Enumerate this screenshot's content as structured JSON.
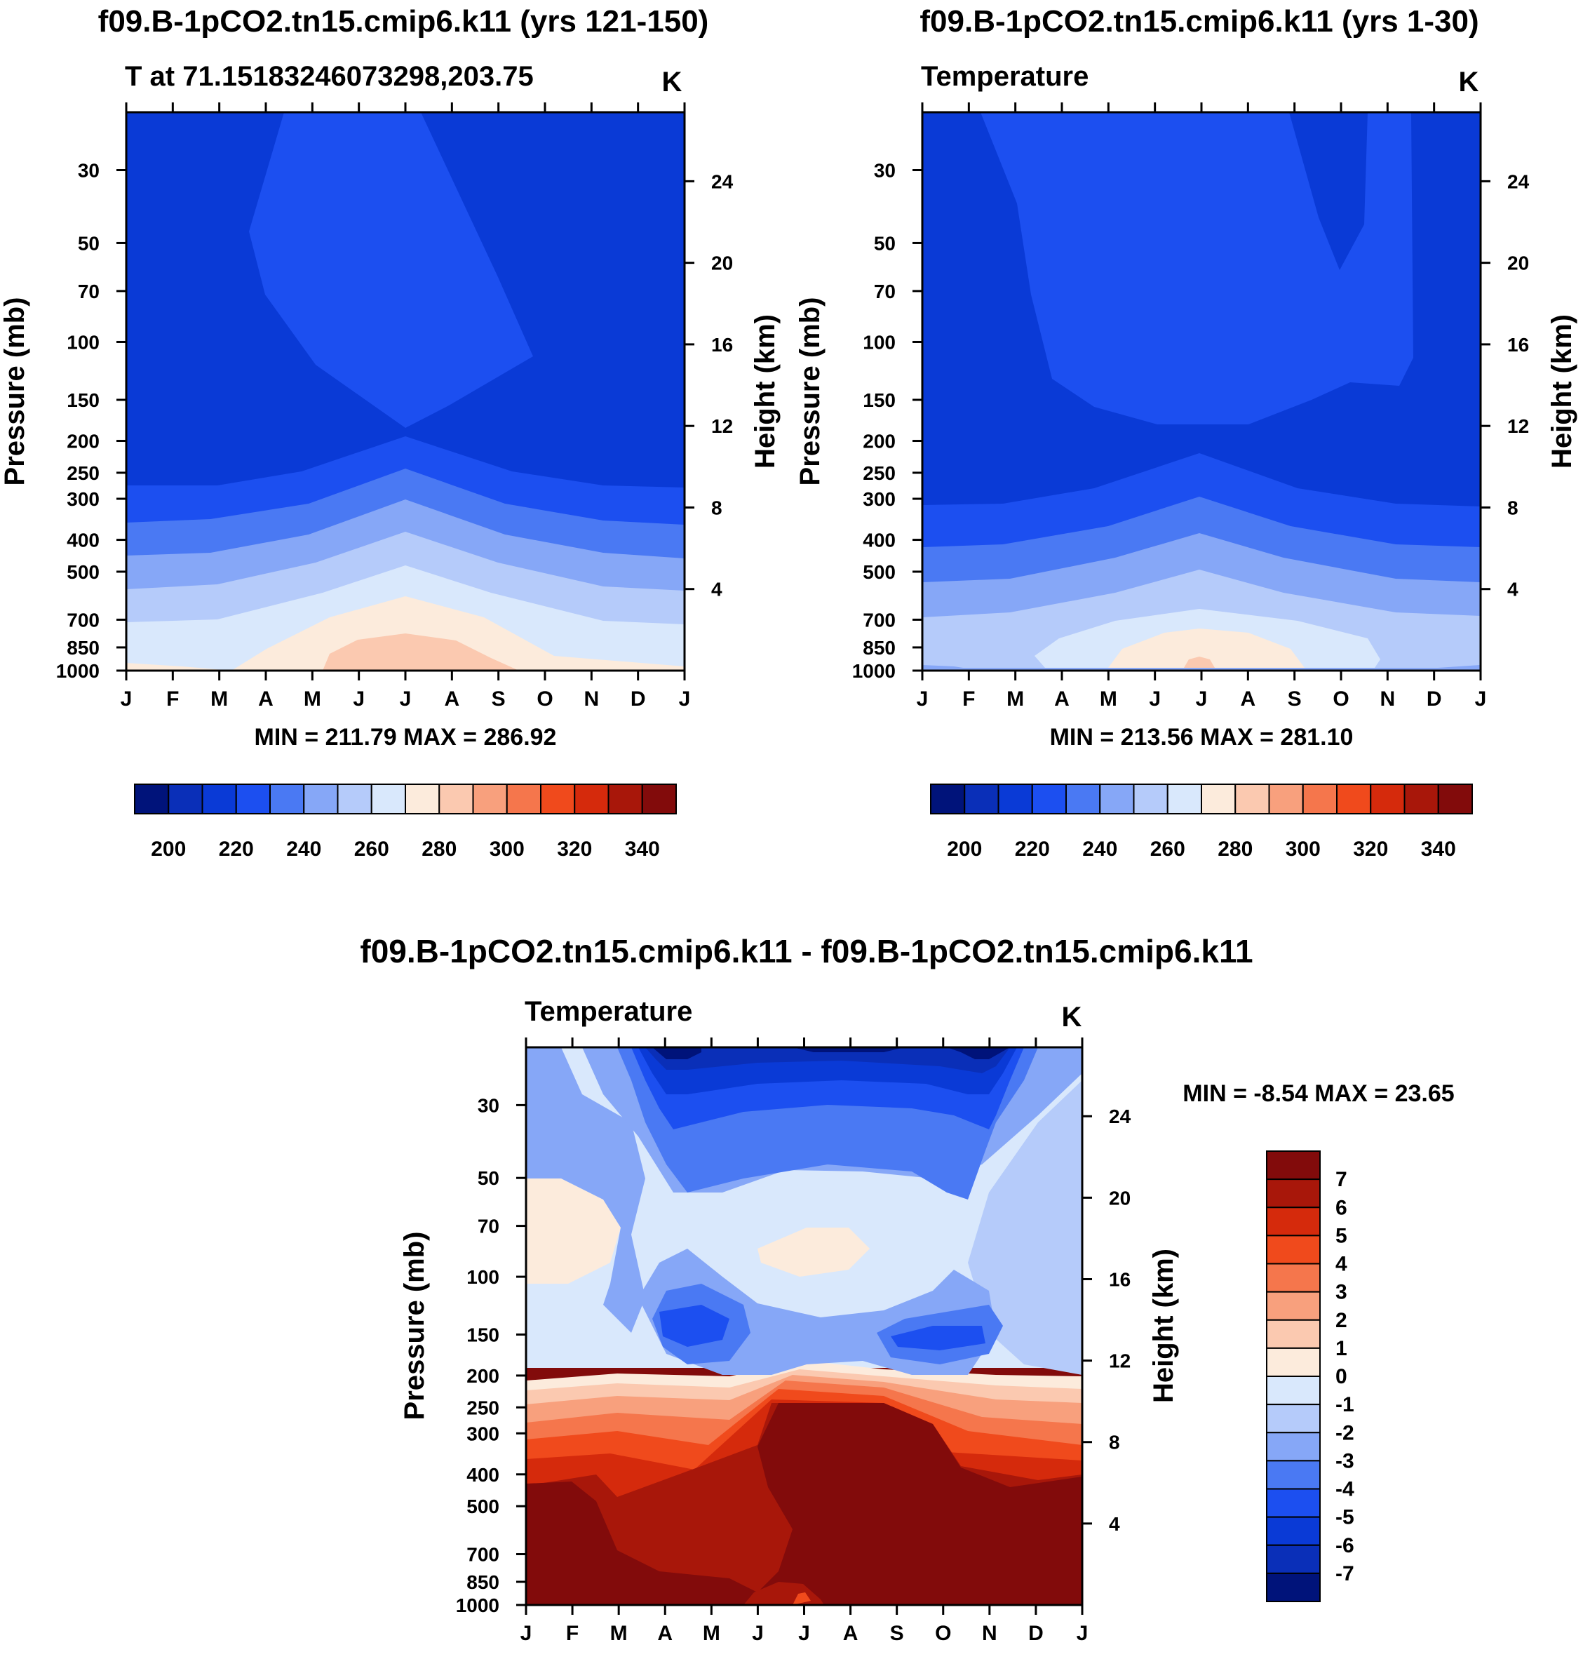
{
  "chart_data": [
    {
      "type": "heatmap",
      "title": "f09.B-1pCO2.tn15.cmip6.k11 (yrs 121-150)",
      "subtitle_left": "T at 71.15183246073298,203.75",
      "units": "K",
      "ylabel": "Pressure (mb)",
      "ylabel_right": "Height (km)",
      "x_ticks": [
        "J",
        "F",
        "M",
        "A",
        "M",
        "J",
        "J",
        "A",
        "S",
        "O",
        "N",
        "D",
        "J"
      ],
      "pressure_ticks": [
        30,
        50,
        70,
        100,
        150,
        200,
        250,
        300,
        400,
        500,
        700,
        850,
        1000
      ],
      "height_ticks": [
        24,
        20,
        16,
        12,
        8,
        4
      ],
      "stats": "MIN = 211.79 MAX = 286.92",
      "colorbar_labels": [
        "200",
        "220",
        "240",
        "260",
        "280",
        "300",
        "320",
        "340"
      ],
      "colorbar_colors": [
        "#00137a",
        "#0a2fb8",
        "#0a3ad6",
        "#1c4ff0",
        "#4a79f3",
        "#86a7f7",
        "#b5cbfa",
        "#d9e8fc",
        "#fcebdc",
        "#fbc9b0",
        "#f8a07d",
        "#f5764c",
        "#f04a1c",
        "#d52a0c",
        "#a8170a",
        "#820b0b"
      ],
      "contour_bands": [
        {
          "level": "210-220",
          "color": "#0a3ad6"
        },
        {
          "level": "220-230",
          "color": "#1c4ff0"
        },
        {
          "level": "230-240",
          "color": "#4a79f3"
        },
        {
          "level": "240-250",
          "color": "#86a7f7"
        },
        {
          "level": "250-260",
          "color": "#b5cbfa"
        },
        {
          "level": "260-270",
          "color": "#d9e8fc"
        },
        {
          "level": "270-280",
          "color": "#fcebdc"
        },
        {
          "level": "280-290",
          "color": "#fbc9b0"
        }
      ]
    },
    {
      "type": "heatmap",
      "title": "f09.B-1pCO2.tn15.cmip6.k11 (yrs 1-30)",
      "subtitle_left": "Temperature",
      "units": "K",
      "ylabel": "Pressure (mb)",
      "ylabel_right": "Height (km)",
      "x_ticks": [
        "J",
        "F",
        "M",
        "A",
        "M",
        "J",
        "J",
        "A",
        "S",
        "O",
        "N",
        "D",
        "J"
      ],
      "pressure_ticks": [
        30,
        50,
        70,
        100,
        150,
        200,
        250,
        300,
        400,
        500,
        700,
        850,
        1000
      ],
      "height_ticks": [
        24,
        20,
        16,
        12,
        8,
        4
      ],
      "stats": "MIN = 213.56 MAX = 281.10",
      "colorbar_labels": [
        "200",
        "220",
        "240",
        "260",
        "280",
        "300",
        "320",
        "340"
      ],
      "colorbar_colors": [
        "#00137a",
        "#0a2fb8",
        "#0a3ad6",
        "#1c4ff0",
        "#4a79f3",
        "#86a7f7",
        "#b5cbfa",
        "#d9e8fc",
        "#fcebdc",
        "#fbc9b0",
        "#f8a07d",
        "#f5764c",
        "#f04a1c",
        "#d52a0c",
        "#a8170a",
        "#820b0b"
      ]
    },
    {
      "type": "heatmap",
      "title": "f09.B-1pCO2.tn15.cmip6.k11 - f09.B-1pCO2.tn15.cmip6.k11",
      "subtitle_left": "Temperature",
      "units": "K",
      "ylabel": "Pressure (mb)",
      "ylabel_right": "Height (km)",
      "x_ticks": [
        "J",
        "F",
        "M",
        "A",
        "M",
        "J",
        "J",
        "A",
        "S",
        "O",
        "N",
        "D",
        "J"
      ],
      "pressure_ticks": [
        30,
        50,
        70,
        100,
        150,
        200,
        250,
        300,
        400,
        500,
        700,
        850,
        1000
      ],
      "height_ticks": [
        24,
        20,
        16,
        12,
        8,
        4
      ],
      "stats": "MIN =  -8.54 MAX =  23.65",
      "colorbar_labels": [
        "7",
        "6",
        "5",
        "4",
        "3",
        "2",
        "1",
        "0",
        "-1",
        "-2",
        "-3",
        "-4",
        "-5",
        "-6",
        "-7"
      ],
      "colorbar_colors": [
        "#820b0b",
        "#a8170a",
        "#d52a0c",
        "#f04a1c",
        "#f5764c",
        "#f8a07d",
        "#fbc9b0",
        "#fcebdc",
        "#d9e8fc",
        "#b5cbfa",
        "#86a7f7",
        "#4a79f3",
        "#1c4ff0",
        "#0a3ad6",
        "#0a2fb8",
        "#00137a"
      ]
    }
  ]
}
